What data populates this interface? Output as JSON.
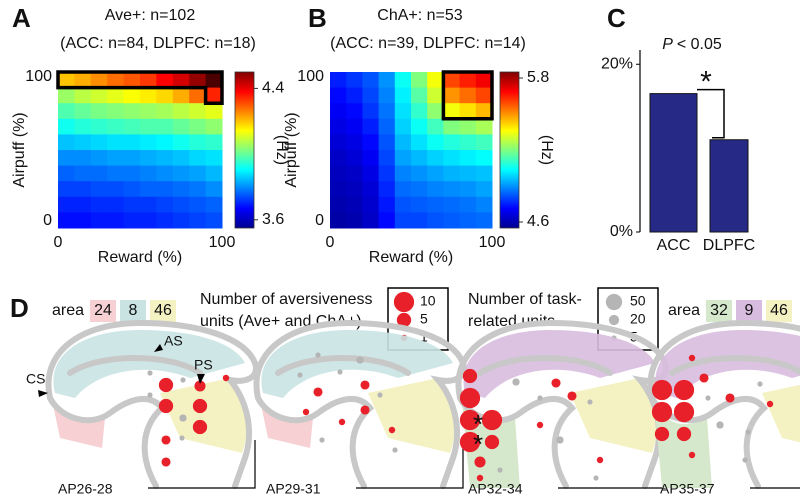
{
  "chart_data": [
    {
      "type": "heatmap",
      "panel_label": "A",
      "title": "Ave+: n=102",
      "subtitle": "(ACC: n=84, DLPFC: n=18)",
      "xlabel": "Reward (%)",
      "ylabel": "Airpuff (%)",
      "xlim": [
        0,
        100
      ],
      "ylim": [
        0,
        100
      ],
      "xticks": [
        0,
        100
      ],
      "yticks": [
        0,
        100
      ],
      "colormap": "jet",
      "clim": [
        3.55,
        4.5
      ],
      "cticks": [
        3.6,
        4.4
      ],
      "colorbar_label": "(Hz)",
      "values": [
        [
          4.2,
          4.22,
          4.25,
          4.28,
          4.3,
          4.33,
          4.38,
          4.42,
          4.48,
          4.55
        ],
        [
          4.05,
          4.08,
          4.1,
          4.12,
          4.14,
          4.16,
          4.18,
          4.22,
          4.28,
          4.35
        ],
        [
          3.98,
          4.0,
          4.02,
          4.03,
          4.04,
          4.05,
          4.06,
          4.08,
          4.1,
          4.12
        ],
        [
          3.92,
          3.94,
          3.95,
          3.96,
          3.97,
          3.98,
          3.98,
          4.0,
          4.02,
          4.04
        ],
        [
          3.85,
          3.86,
          3.87,
          3.88,
          3.88,
          3.89,
          3.9,
          3.92,
          3.94,
          3.95
        ],
        [
          3.8,
          3.8,
          3.81,
          3.82,
          3.82,
          3.83,
          3.84,
          3.85,
          3.87,
          3.88
        ],
        [
          3.76,
          3.77,
          3.77,
          3.78,
          3.78,
          3.79,
          3.8,
          3.81,
          3.82,
          3.84
        ],
        [
          3.73,
          3.73,
          3.74,
          3.74,
          3.75,
          3.76,
          3.76,
          3.77,
          3.78,
          3.8
        ],
        [
          3.7,
          3.7,
          3.71,
          3.71,
          3.72,
          3.72,
          3.73,
          3.74,
          3.75,
          3.76
        ],
        [
          3.68,
          3.68,
          3.69,
          3.69,
          3.7,
          3.7,
          3.71,
          3.72,
          3.73,
          3.74
        ]
      ]
    },
    {
      "type": "heatmap",
      "panel_label": "B",
      "title": "ChA+: n=53",
      "subtitle": "(ACC: n=39, DLPFC: n=14)",
      "xlabel": "Reward (%)",
      "ylabel": "Airpuff (%)",
      "xlim": [
        0,
        100
      ],
      "ylim": [
        0,
        100
      ],
      "xticks": [
        0,
        100
      ],
      "yticks": [
        0,
        100
      ],
      "colormap": "jet",
      "clim": [
        4.55,
        5.85
      ],
      "cticks": [
        4.6,
        5.8
      ],
      "colorbar_label": "(Hz)",
      "values": [
        [
          4.75,
          4.78,
          4.82,
          4.9,
          5.05,
          5.2,
          5.35,
          5.6,
          5.65,
          5.7
        ],
        [
          4.72,
          4.75,
          4.8,
          4.88,
          5.02,
          5.15,
          5.3,
          5.5,
          5.55,
          5.6
        ],
        [
          4.7,
          4.72,
          4.78,
          4.86,
          5.0,
          5.1,
          5.22,
          5.35,
          5.4,
          5.45
        ],
        [
          4.68,
          4.7,
          4.75,
          4.84,
          4.98,
          5.05,
          5.12,
          5.2,
          5.22,
          5.25
        ],
        [
          4.66,
          4.68,
          4.72,
          4.82,
          4.95,
          5.0,
          5.05,
          5.08,
          5.1,
          5.12
        ],
        [
          4.64,
          4.66,
          4.7,
          4.8,
          4.92,
          4.95,
          4.98,
          5.0,
          5.02,
          5.04
        ],
        [
          4.63,
          4.64,
          4.68,
          4.78,
          4.88,
          4.9,
          4.92,
          4.94,
          4.95,
          4.96
        ],
        [
          4.62,
          4.63,
          4.66,
          4.76,
          4.85,
          4.86,
          4.88,
          4.89,
          4.9,
          4.92
        ],
        [
          4.61,
          4.62,
          4.65,
          4.74,
          4.82,
          4.83,
          4.84,
          4.85,
          4.86,
          4.88
        ],
        [
          4.6,
          4.61,
          4.64,
          4.72,
          4.8,
          4.8,
          4.82,
          4.83,
          4.84,
          4.85
        ]
      ]
    },
    {
      "type": "bar",
      "panel_label": "C",
      "annotation_italic": "P",
      "annotation": "< 0.05",
      "significance": "*",
      "categories": [
        "ACC",
        "DLPFC"
      ],
      "values": [
        16.5,
        11
      ],
      "color": "#262a86",
      "ylim": [
        0,
        21.7
      ],
      "yticks": [
        {
          "value": 0,
          "label": "0%"
        },
        {
          "value": 20,
          "label": "20%"
        }
      ]
    }
  ],
  "panel_d": {
    "label": "D",
    "area_legend_left": {
      "title": "area",
      "areas": [
        {
          "name": "24",
          "color": "#f6d0d3"
        },
        {
          "name": "8",
          "color": "#c9e3e3"
        },
        {
          "name": "46",
          "color": "#f4f2c3"
        }
      ]
    },
    "area_legend_right": {
      "title": "area",
      "areas": [
        {
          "name": "32",
          "color": "#d6e8cb"
        },
        {
          "name": "9",
          "color": "#d8bcdf"
        },
        {
          "name": "46",
          "color": "#f4f2c3"
        }
      ]
    },
    "red_legend": {
      "title_lines": [
        "Number of aversiveness",
        "units (Ave+ and ChA+)"
      ],
      "color": "#e8202a",
      "sizes": [
        10,
        5,
        1
      ]
    },
    "gray_legend": {
      "title_lines": [
        "Number of task-",
        "related units"
      ],
      "color": "#b5b5b5",
      "sizes": [
        50,
        20,
        5
      ]
    },
    "annotations": {
      "cs": "CS",
      "as": "AS",
      "ps": "PS"
    },
    "asterisks": [
      "*",
      "*"
    ],
    "sections": [
      {
        "label": "AP26-28",
        "red": [
          5,
          5,
          3,
          5,
          5,
          2,
          2,
          1
        ],
        "gray": [
          5,
          5,
          5,
          10,
          5
        ]
      },
      {
        "label": "AP29-31",
        "red": [
          2,
          2,
          2,
          1,
          1,
          1
        ],
        "gray": [
          5,
          5,
          5,
          10,
          5,
          5,
          5
        ]
      },
      {
        "label": "AP32-34",
        "red": [
          5,
          10,
          10,
          10,
          3,
          10,
          5,
          1,
          2,
          2,
          1,
          1
        ],
        "gray": [
          10,
          5,
          5,
          10,
          5,
          5
        ]
      },
      {
        "label": "AP35-37",
        "red": [
          10,
          10,
          10,
          10,
          5,
          5,
          2,
          2,
          1,
          1,
          1
        ],
        "gray": [
          5,
          10,
          5,
          5,
          5
        ]
      }
    ]
  }
}
